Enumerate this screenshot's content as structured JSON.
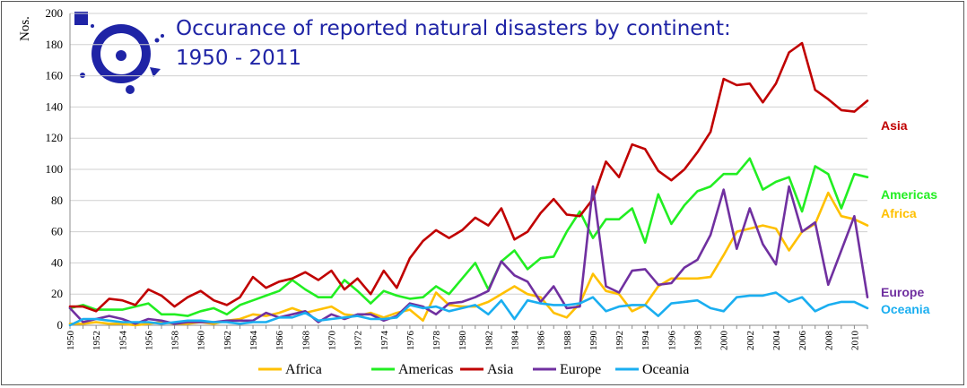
{
  "chart_data": {
    "type": "line",
    "title_lines": [
      "Occurance of reported natural disasters by continent:",
      "1950 - 2011"
    ],
    "ylabel": "Nos.",
    "xlabel": "",
    "ylim": [
      0,
      200
    ],
    "yticks": [
      0,
      20,
      40,
      60,
      80,
      100,
      120,
      140,
      160,
      180,
      200
    ],
    "xlim": [
      1950,
      2011
    ],
    "xticks": [
      "1950",
      "1952",
      "1954",
      "1956",
      "1958",
      "1960",
      "1962",
      "1964",
      "1966",
      "1968",
      "1970",
      "1972",
      "1974",
      "1976",
      "1978",
      "1980",
      "1982",
      "1984",
      "1986",
      "1988",
      "1990",
      "1992",
      "1994",
      "1996",
      "1998",
      "2000",
      "2002",
      "2004",
      "2006",
      "2008",
      "2010"
    ],
    "grid": "horizontal",
    "legend_position": "bottom",
    "x": [
      1950,
      1951,
      1952,
      1953,
      1954,
      1955,
      1956,
      1957,
      1958,
      1959,
      1960,
      1961,
      1962,
      1963,
      1964,
      1965,
      1966,
      1967,
      1968,
      1969,
      1970,
      1971,
      1972,
      1973,
      1974,
      1975,
      1976,
      1977,
      1978,
      1979,
      1980,
      1981,
      1982,
      1983,
      1984,
      1985,
      1986,
      1987,
      1988,
      1989,
      1990,
      1991,
      1992,
      1993,
      1994,
      1995,
      1996,
      1997,
      1998,
      1999,
      2000,
      2001,
      2002,
      2003,
      2004,
      2005,
      2006,
      2007,
      2008,
      2009,
      2010,
      2011
    ],
    "series": [
      {
        "name": "Africa",
        "color": "#ffc000",
        "values": [
          1,
          1,
          2,
          1,
          1,
          0,
          1,
          2,
          1,
          1,
          2,
          1,
          3,
          4,
          7,
          6,
          8,
          11,
          8,
          10,
          12,
          7,
          6,
          8,
          5,
          8,
          10,
          3,
          21,
          13,
          12,
          12,
          15,
          20,
          25,
          20,
          18,
          8,
          5,
          14,
          33,
          22,
          20,
          9,
          13,
          25,
          30,
          30,
          30,
          31,
          45,
          60,
          62,
          64,
          62,
          48,
          60,
          65,
          85,
          70,
          68,
          64
        ]
      },
      {
        "name": "Americas",
        "color": "#22ee22",
        "values": [
          11,
          13,
          10,
          10,
          10,
          12,
          14,
          7,
          7,
          6,
          9,
          11,
          7,
          13,
          16,
          19,
          22,
          29,
          23,
          18,
          18,
          29,
          22,
          14,
          22,
          19,
          17,
          18,
          25,
          20,
          30,
          40,
          23,
          41,
          48,
          36,
          43,
          44,
          60,
          73,
          56,
          68,
          68,
          75,
          53,
          84,
          65,
          77,
          86,
          89,
          97,
          97,
          107,
          87,
          92,
          95,
          73,
          102,
          97,
          75,
          97,
          95
        ]
      },
      {
        "name": "Asia",
        "color": "#c00000",
        "values": [
          12,
          12,
          9,
          17,
          16,
          13,
          23,
          19,
          12,
          18,
          22,
          16,
          13,
          18,
          31,
          24,
          28,
          30,
          34,
          29,
          35,
          23,
          30,
          20,
          35,
          24,
          43,
          54,
          61,
          56,
          61,
          69,
          64,
          75,
          55,
          60,
          72,
          81,
          71,
          70,
          81,
          105,
          95,
          116,
          113,
          99,
          93,
          100,
          111,
          124,
          158,
          154,
          155,
          143,
          155,
          175,
          181,
          151,
          145,
          138,
          137,
          144
        ]
      },
      {
        "name": "Europe",
        "color": "#7030a0",
        "values": [
          11,
          2,
          4,
          6,
          4,
          1,
          4,
          3,
          1,
          2,
          2,
          2,
          3,
          3,
          3,
          8,
          5,
          7,
          9,
          2,
          7,
          4,
          7,
          7,
          3,
          6,
          14,
          12,
          7,
          14,
          15,
          18,
          22,
          41,
          32,
          28,
          15,
          25,
          11,
          12,
          89,
          25,
          21,
          35,
          36,
          26,
          27,
          37,
          42,
          58,
          87,
          49,
          75,
          52,
          39,
          89,
          60,
          66,
          26,
          48,
          70,
          18
        ]
      },
      {
        "name": "Oceania",
        "color": "#1aaef0",
        "values": [
          0,
          4,
          4,
          3,
          2,
          2,
          2,
          1,
          2,
          3,
          3,
          2,
          2,
          1,
          2,
          2,
          5,
          5,
          8,
          3,
          4,
          5,
          6,
          4,
          4,
          5,
          13,
          11,
          12,
          9,
          11,
          13,
          7,
          16,
          4,
          16,
          14,
          13,
          13,
          14,
          18,
          9,
          12,
          13,
          13,
          6,
          14,
          15,
          16,
          11,
          9,
          18,
          19,
          19,
          21,
          15,
          18,
          9,
          13,
          15,
          15,
          11
        ]
      }
    ]
  }
}
